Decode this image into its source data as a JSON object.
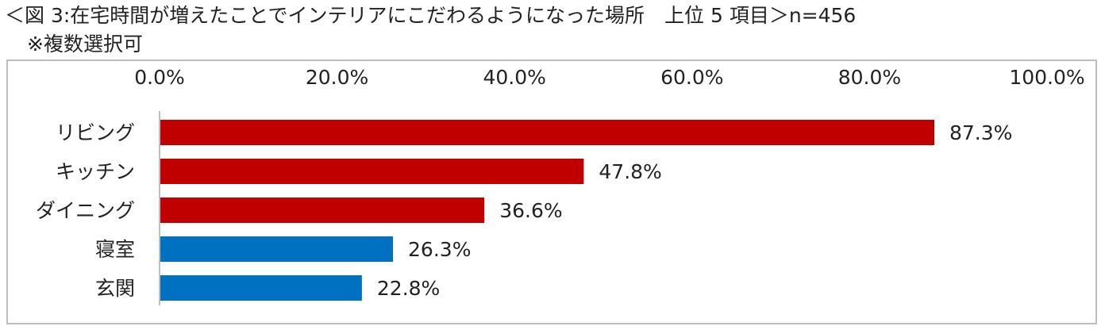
{
  "title": "＜図 3:在宅時間が増えたことでインテリアにこだわるようになった場所　上位 5 項目＞n=456",
  "subtitle": "※複数選択可",
  "colors": {
    "red": "#c00000",
    "blue": "#0070c0",
    "axis": "#bfbfbf"
  },
  "chart_data": {
    "type": "bar",
    "orientation": "horizontal",
    "categories": [
      "リビング",
      "キッチン",
      "ダイニング",
      "寝室",
      "玄関"
    ],
    "values": [
      87.3,
      47.8,
      36.6,
      26.3,
      22.8
    ],
    "value_labels": [
      "87.3%",
      "47.8%",
      "36.6%",
      "26.3%",
      "22.8%"
    ],
    "bar_colors": [
      "#c00000",
      "#c00000",
      "#c00000",
      "#0070c0",
      "#0070c0"
    ],
    "xlim": [
      0,
      100
    ],
    "xticks": [
      0,
      20,
      40,
      60,
      80,
      100
    ],
    "xtick_labels": [
      "0.0%",
      "20.0%",
      "40.0%",
      "60.0%",
      "80.0%",
      "100.0%"
    ],
    "axis_position": "top",
    "grid": false,
    "legend": "none"
  }
}
